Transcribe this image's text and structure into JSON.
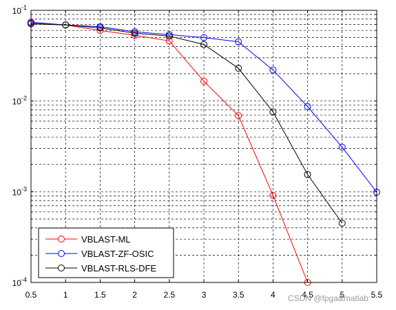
{
  "chart_data": {
    "type": "line",
    "yscale": "log",
    "xlim": [
      0.5,
      5.5
    ],
    "ylim": [
      0.0001,
      0.1
    ],
    "grid": true,
    "legend_position": "bottom-left",
    "x_ticks": [
      "0.5",
      "1",
      "1.5",
      "2",
      "2.5",
      "3",
      "3.5",
      "4",
      "4.5",
      "5",
      "5.5"
    ],
    "y_ticks": [
      {
        "base": "10",
        "exp": "-4"
      },
      {
        "base": "10",
        "exp": "-3"
      },
      {
        "base": "10",
        "exp": "-2"
      },
      {
        "base": "10",
        "exp": "-1"
      }
    ],
    "series": [
      {
        "name": "VBLAST-ML",
        "color": "#ff0000",
        "marker": "circle",
        "x": [
          0.5,
          1,
          1.5,
          2,
          2.5,
          3,
          3.5,
          4,
          4.5
        ],
        "y": [
          0.072,
          0.069,
          0.06,
          0.053,
          0.046,
          0.0165,
          0.0069,
          0.00091,
          0.0001
        ]
      },
      {
        "name": "VBLAST-ZF-OSIC",
        "color": "#0000ff",
        "marker": "circle",
        "x": [
          0.5,
          1,
          1.5,
          2,
          2.5,
          3,
          3.5,
          4,
          4.5,
          5,
          5.5
        ],
        "y": [
          0.074,
          0.069,
          0.066,
          0.058,
          0.054,
          0.05,
          0.045,
          0.022,
          0.0087,
          0.0031,
          0.00099
        ]
      },
      {
        "name": "VBLAST-RLS-DFE",
        "color": "#000000",
        "marker": "circle",
        "x": [
          0.5,
          1,
          1.5,
          2,
          2.5,
          3,
          3.5,
          4,
          4.5,
          5
        ],
        "y": [
          0.071,
          0.069,
          0.064,
          0.056,
          0.052,
          0.042,
          0.023,
          0.0076,
          0.00155,
          0.00045
        ]
      }
    ]
  },
  "watermark": "CSDN @fpga&matlab"
}
